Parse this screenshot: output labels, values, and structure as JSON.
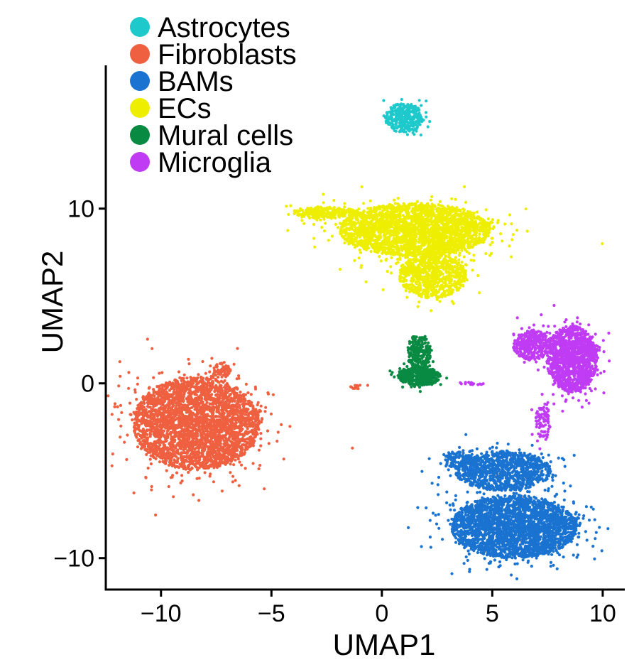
{
  "chart_data": {
    "type": "scatter",
    "xlabel": "UMAP1",
    "ylabel": "UMAP2",
    "xlim": [
      -12.5,
      11
    ],
    "ylim": [
      -11.8,
      18.2
    ],
    "x_ticks": [
      -10,
      -5,
      0,
      5,
      10
    ],
    "y_ticks": [
      -10,
      0,
      10
    ],
    "x_tick_labels": [
      "−10",
      "−5",
      "0",
      "5",
      "10"
    ],
    "y_tick_labels": [
      "−10",
      "0",
      "10"
    ],
    "grid": false,
    "legend_position": "top-left",
    "series": [
      {
        "name": "Astrocytes",
        "color": "#1ec9cc",
        "clusters": [
          {
            "cx": 1.0,
            "cy": 15.2,
            "rx": 0.9,
            "ry": 0.9,
            "n": 320
          }
        ]
      },
      {
        "name": "Fibroblasts",
        "color": "#ee6040",
        "clusters": [
          {
            "cx": -8.4,
            "cy": -2.3,
            "rx": 3.0,
            "ry": 2.8,
            "n": 3200
          },
          {
            "cx": -7.3,
            "cy": 0.6,
            "rx": 0.5,
            "ry": 0.6,
            "n": 60
          },
          {
            "cx": -1.2,
            "cy": -0.2,
            "rx": 0.4,
            "ry": 0.12,
            "n": 15
          }
        ]
      },
      {
        "name": "BAMs",
        "color": "#1a73d0",
        "clusters": [
          {
            "cx": 6.0,
            "cy": -8.2,
            "rx": 3.0,
            "ry": 1.9,
            "n": 2600
          },
          {
            "cx": 5.5,
            "cy": -5.0,
            "rx": 2.3,
            "ry": 1.2,
            "n": 1000
          },
          {
            "cx": 3.6,
            "cy": -4.4,
            "rx": 0.8,
            "ry": 0.6,
            "n": 120
          }
        ]
      },
      {
        "name": "ECs",
        "color": "#eeee00",
        "clusters": [
          {
            "cx": 1.5,
            "cy": 8.8,
            "rx": 3.6,
            "ry": 1.6,
            "n": 2600
          },
          {
            "cx": 2.3,
            "cy": 6.2,
            "rx": 1.6,
            "ry": 1.4,
            "n": 800
          },
          {
            "cx": -2.6,
            "cy": 9.8,
            "rx": 1.5,
            "ry": 0.35,
            "n": 250
          }
        ]
      },
      {
        "name": "Mural cells",
        "color": "#098a43",
        "clusters": [
          {
            "cx": 1.7,
            "cy": 0.4,
            "rx": 1.0,
            "ry": 0.55,
            "n": 450
          },
          {
            "cx": 1.7,
            "cy": 1.8,
            "rx": 0.55,
            "ry": 1.1,
            "n": 220
          }
        ]
      },
      {
        "name": "Microglia",
        "color": "#c03cf4",
        "clusters": [
          {
            "cx": 8.6,
            "cy": 1.4,
            "rx": 1.2,
            "ry": 2.0,
            "n": 1300
          },
          {
            "cx": 6.8,
            "cy": 2.2,
            "rx": 0.9,
            "ry": 0.9,
            "n": 350
          },
          {
            "cx": 7.3,
            "cy": -2.2,
            "rx": 0.35,
            "ry": 1.2,
            "n": 90
          },
          {
            "cx": 4.0,
            "cy": 0.0,
            "rx": 0.7,
            "ry": 0.1,
            "n": 18
          }
        ]
      }
    ]
  }
}
